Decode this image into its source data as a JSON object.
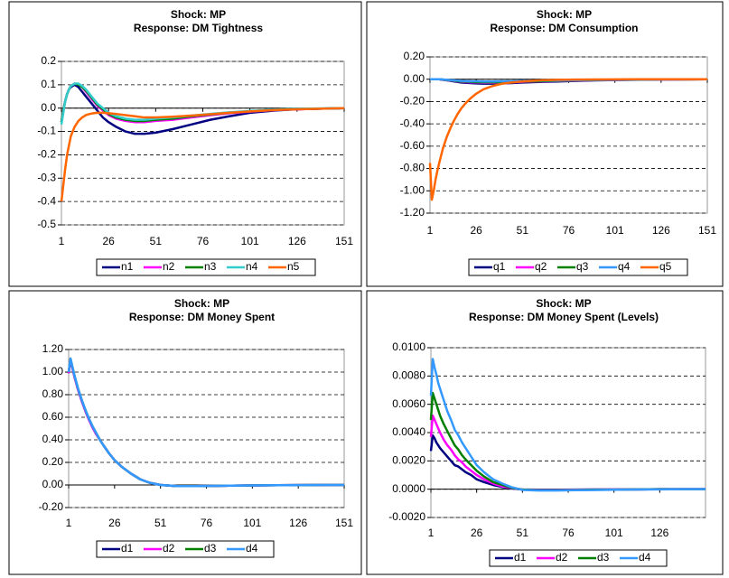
{
  "chart_data": [
    {
      "type": "line",
      "title": "Shock: MP",
      "subtitle": "Response: DM Tightness",
      "x": [
        1,
        2,
        3,
        4,
        5,
        6,
        8,
        10,
        12,
        14,
        16,
        18,
        20,
        23,
        26,
        30,
        35,
        40,
        45,
        51,
        60,
        70,
        80,
        90,
        101,
        115,
        126,
        140,
        151
      ],
      "xlim": [
        1,
        151
      ],
      "xticks": [
        1,
        26,
        51,
        76,
        101,
        126,
        151
      ],
      "ylim": [
        -0.5,
        0.2
      ],
      "yticks": [
        0.2,
        0.1,
        {
          "value": 0,
          "label": "0.0"
        },
        -0.1,
        -0.2,
        -0.3,
        -0.4,
        -0.5
      ],
      "grid": true,
      "legend": "bottom",
      "series": [
        {
          "name": "n1",
          "color": "#000080",
          "values": [
            -0.06,
            -0.01,
            0.03,
            0.06,
            0.08,
            0.09,
            0.1,
            0.09,
            0.07,
            0.05,
            0.03,
            0.01,
            -0.01,
            -0.04,
            -0.06,
            -0.08,
            -0.1,
            -0.11,
            -0.11,
            -0.105,
            -0.09,
            -0.07,
            -0.05,
            -0.035,
            -0.02,
            -0.01,
            -0.005,
            -0.002,
            0
          ]
        },
        {
          "name": "n2",
          "color": "#ff00ff",
          "values": [
            -0.06,
            -0.01,
            0.03,
            0.06,
            0.08,
            0.095,
            0.105,
            0.1,
            0.09,
            0.07,
            0.05,
            0.03,
            0.01,
            -0.01,
            -0.03,
            -0.045,
            -0.055,
            -0.06,
            -0.06,
            -0.055,
            -0.05,
            -0.04,
            -0.03,
            -0.022,
            -0.015,
            -0.008,
            -0.005,
            -0.002,
            0
          ]
        },
        {
          "name": "n3",
          "color": "#008000",
          "values": [
            -0.06,
            -0.01,
            0.03,
            0.06,
            0.08,
            0.095,
            0.105,
            0.1,
            0.09,
            0.075,
            0.055,
            0.035,
            0.015,
            -0.005,
            -0.025,
            -0.04,
            -0.05,
            -0.055,
            -0.055,
            -0.05,
            -0.045,
            -0.035,
            -0.027,
            -0.02,
            -0.013,
            -0.007,
            -0.004,
            -0.002,
            0
          ]
        },
        {
          "name": "n4",
          "color": "#33cccc",
          "values": [
            -0.07,
            -0.02,
            0.03,
            0.06,
            0.08,
            0.095,
            0.105,
            0.105,
            0.095,
            0.08,
            0.06,
            0.04,
            0.02,
            0,
            -0.02,
            -0.035,
            -0.045,
            -0.05,
            -0.05,
            -0.045,
            -0.04,
            -0.032,
            -0.025,
            -0.018,
            -0.012,
            -0.006,
            -0.003,
            -0.001,
            0
          ]
        },
        {
          "name": "n5",
          "color": "#ff6600",
          "values": [
            -0.4,
            -0.33,
            -0.26,
            -0.2,
            -0.16,
            -0.12,
            -0.08,
            -0.055,
            -0.04,
            -0.03,
            -0.025,
            -0.022,
            -0.02,
            -0.02,
            -0.022,
            -0.025,
            -0.03,
            -0.035,
            -0.04,
            -0.04,
            -0.037,
            -0.032,
            -0.026,
            -0.02,
            -0.014,
            -0.008,
            -0.005,
            -0.002,
            0
          ]
        }
      ]
    },
    {
      "type": "line",
      "title": "Shock: MP",
      "subtitle": "Response: DM Consumption",
      "x": [
        1,
        2,
        3,
        4,
        5,
        6,
        8,
        10,
        12,
        14,
        16,
        18,
        20,
        23,
        26,
        30,
        35,
        40,
        45,
        51,
        60,
        70,
        80,
        90,
        101,
        115,
        126,
        140,
        151
      ],
      "xlim": [
        1,
        151
      ],
      "xticks": [
        1,
        26,
        51,
        76,
        101,
        126,
        151
      ],
      "ylim": [
        -1.2,
        0.2
      ],
      "yticks": [
        {
          "value": 0.2,
          "label": "0.20"
        },
        {
          "value": 0,
          "label": "0.00"
        },
        {
          "value": -0.2,
          "label": "-0.20"
        },
        {
          "value": -0.4,
          "label": "-0.40"
        },
        {
          "value": -0.6,
          "label": "-0.60"
        },
        {
          "value": -0.8,
          "label": "-0.80"
        },
        {
          "value": -1,
          "label": "-1.00"
        },
        {
          "value": -1.2,
          "label": "-1.20"
        }
      ],
      "grid": true,
      "legend": "bottom",
      "series": [
        {
          "name": "q1",
          "color": "#000080",
          "values": [
            0,
            0,
            0,
            0,
            0,
            0,
            -0.005,
            -0.01,
            -0.015,
            -0.02,
            -0.025,
            -0.03,
            -0.032,
            -0.035,
            -0.038,
            -0.04,
            -0.04,
            -0.038,
            -0.035,
            -0.03,
            -0.025,
            -0.02,
            -0.015,
            -0.01,
            -0.007,
            -0.004,
            -0.002,
            -0.001,
            0
          ]
        },
        {
          "name": "q2",
          "color": "#ff00ff",
          "values": [
            0,
            0,
            0,
            0,
            0,
            0,
            -0.004,
            -0.008,
            -0.012,
            -0.016,
            -0.02,
            -0.024,
            -0.026,
            -0.028,
            -0.03,
            -0.032,
            -0.032,
            -0.03,
            -0.028,
            -0.024,
            -0.02,
            -0.016,
            -0.012,
            -0.008,
            -0.006,
            -0.003,
            -0.002,
            -0.001,
            0
          ]
        },
        {
          "name": "q3",
          "color": "#008000",
          "values": [
            0,
            0,
            0,
            0,
            0,
            0,
            -0.003,
            -0.007,
            -0.01,
            -0.014,
            -0.018,
            -0.021,
            -0.022,
            -0.024,
            -0.027,
            -0.028,
            -0.028,
            -0.027,
            -0.025,
            -0.021,
            -0.018,
            -0.014,
            -0.01,
            -0.007,
            -0.005,
            -0.003,
            -0.001,
            -0.001,
            0
          ]
        },
        {
          "name": "q4",
          "color": "#3399ff",
          "values": [
            0,
            0,
            0,
            0,
            0,
            0,
            -0.002,
            -0.005,
            -0.008,
            -0.01,
            -0.012,
            -0.015,
            -0.016,
            -0.018,
            -0.019,
            -0.02,
            -0.02,
            -0.019,
            -0.018,
            -0.015,
            -0.012,
            -0.01,
            -0.008,
            -0.005,
            -0.004,
            -0.002,
            -0.001,
            0,
            0
          ]
        },
        {
          "name": "q5",
          "color": "#ff6600",
          "values": [
            -0.75,
            -1.08,
            -1,
            -0.9,
            -0.82,
            -0.75,
            -0.62,
            -0.52,
            -0.44,
            -0.37,
            -0.31,
            -0.26,
            -0.22,
            -0.17,
            -0.13,
            -0.09,
            -0.06,
            -0.04,
            -0.03,
            -0.02,
            -0.01,
            -0.005,
            -0.003,
            -0.002,
            -0.001,
            0,
            0,
            0,
            0
          ]
        }
      ]
    },
    {
      "type": "line",
      "title": "Shock: MP",
      "subtitle": "Response: DM Money Spent",
      "x": [
        1,
        2,
        3,
        4,
        5,
        6,
        8,
        10,
        12,
        14,
        16,
        18,
        20,
        23,
        26,
        30,
        35,
        40,
        45,
        51,
        60,
        70,
        80,
        90,
        101,
        115,
        126,
        140,
        151
      ],
      "xlim": [
        1,
        151
      ],
      "xticks": [
        1,
        26,
        51,
        76,
        101,
        126,
        151
      ],
      "ylim": [
        -0.2,
        1.2
      ],
      "yticks": [
        {
          "value": 1.2,
          "label": "1.20"
        },
        {
          "value": 1,
          "label": "1.00"
        },
        {
          "value": 0.8,
          "label": "0.80"
        },
        {
          "value": 0.6,
          "label": "0.60"
        },
        {
          "value": 0.4,
          "label": "0.40"
        },
        {
          "value": 0.2,
          "label": "0.20"
        },
        {
          "value": 0,
          "label": "0.00"
        },
        {
          "value": -0.2,
          "label": "-0.20"
        }
      ],
      "grid": true,
      "legend": "bottom",
      "series": [
        {
          "name": "d1",
          "color": "#000080",
          "values": [
            0.99,
            1.11,
            1.04,
            0.97,
            0.91,
            0.85,
            0.75,
            0.66,
            0.58,
            0.51,
            0.45,
            0.4,
            0.35,
            0.28,
            0.22,
            0.16,
            0.1,
            0.05,
            0.02,
            0,
            -0.01,
            -0.01,
            -0.008,
            -0.006,
            -0.004,
            -0.002,
            -0.001,
            0,
            0
          ]
        },
        {
          "name": "d2",
          "color": "#ff00ff",
          "values": [
            0.99,
            1.11,
            1.04,
            0.97,
            0.91,
            0.85,
            0.75,
            0.66,
            0.58,
            0.51,
            0.45,
            0.4,
            0.35,
            0.28,
            0.22,
            0.16,
            0.1,
            0.05,
            0.02,
            0,
            -0.01,
            -0.01,
            -0.008,
            -0.006,
            -0.004,
            -0.002,
            -0.001,
            0,
            0
          ]
        },
        {
          "name": "d3",
          "color": "#008000",
          "values": [
            1,
            1.12,
            1.05,
            0.98,
            0.92,
            0.86,
            0.76,
            0.67,
            0.59,
            0.52,
            0.46,
            0.4,
            0.35,
            0.28,
            0.22,
            0.16,
            0.1,
            0.05,
            0.02,
            0,
            -0.01,
            -0.01,
            -0.008,
            -0.006,
            -0.004,
            -0.002,
            -0.001,
            0,
            0
          ]
        },
        {
          "name": "d4",
          "color": "#3399ff",
          "values": [
            1,
            1.12,
            1.05,
            0.98,
            0.92,
            0.86,
            0.76,
            0.67,
            0.59,
            0.52,
            0.46,
            0.4,
            0.35,
            0.28,
            0.22,
            0.16,
            0.1,
            0.05,
            0.02,
            0,
            -0.01,
            -0.01,
            -0.008,
            -0.006,
            -0.004,
            -0.002,
            -0.001,
            0,
            0
          ]
        }
      ]
    },
    {
      "type": "line",
      "title": "Shock: MP",
      "subtitle": "Response: DM Money Spent  (Levels)",
      "x": [
        1,
        2,
        3,
        4,
        5,
        6,
        8,
        10,
        12,
        14,
        16,
        18,
        20,
        23,
        26,
        30,
        35,
        40,
        45,
        51,
        60,
        70,
        80,
        90,
        101,
        115,
        126,
        140,
        151
      ],
      "xlim": [
        1,
        151
      ],
      "xticks": [
        1,
        26,
        51,
        76,
        101,
        126
      ],
      "ylim": [
        -0.002,
        0.01
      ],
      "yticks": [
        {
          "value": 0.01,
          "label": "0.0100"
        },
        {
          "value": 0.008,
          "label": "0.0080"
        },
        {
          "value": 0.006,
          "label": "0.0060"
        },
        {
          "value": 0.004,
          "label": "0.0040"
        },
        {
          "value": 0.002,
          "label": "0.0020"
        },
        {
          "value": 0,
          "label": "0.0000"
        },
        {
          "value": -0.002,
          "label": "-0.0020"
        }
      ],
      "grid": true,
      "legend": "bottom",
      "series": [
        {
          "name": "d1",
          "color": "#000080",
          "values": [
            0.0027,
            0.0038,
            0.0036,
            0.0033,
            0.0031,
            0.0029,
            0.0026,
            0.0023,
            0.002,
            0.0017,
            0.0016,
            0.0014,
            0.0012,
            0.001,
            0.0007,
            0.0005,
            0.0003,
            0.00015,
            6e-05,
            -2e-05,
            -4e-05,
            -4e-05,
            -3e-05,
            -2e-05,
            -2e-05,
            -1e-05,
            0,
            0,
            0
          ]
        },
        {
          "name": "d2",
          "color": "#ff00ff",
          "values": [
            0.0037,
            0.0052,
            0.0049,
            0.0046,
            0.0043,
            0.004,
            0.0035,
            0.0031,
            0.0028,
            0.0024,
            0.0021,
            0.0019,
            0.0016,
            0.0013,
            0.001,
            0.0007,
            0.0004,
            0.0002,
            8e-05,
            -3e-05,
            -5e-05,
            -5e-05,
            -4e-05,
            -3e-05,
            -2e-05,
            -1e-05,
            0,
            0,
            0
          ]
        },
        {
          "name": "d3",
          "color": "#008000",
          "values": [
            0.0049,
            0.0068,
            0.0064,
            0.006,
            0.0056,
            0.0052,
            0.0046,
            0.0041,
            0.0036,
            0.0031,
            0.0028,
            0.0024,
            0.0021,
            0.0017,
            0.0013,
            0.0009,
            0.0005,
            0.0003,
            0.0001,
            -3e-05,
            -7e-05,
            -7e-05,
            -5e-05,
            -4e-05,
            -3e-05,
            -1e-05,
            0,
            0,
            0
          ]
        },
        {
          "name": "d4",
          "color": "#3399ff",
          "values": [
            0.0066,
            0.0092,
            0.0086,
            0.0081,
            0.0075,
            0.0071,
            0.0063,
            0.0055,
            0.0049,
            0.0042,
            0.0038,
            0.0033,
            0.0029,
            0.0023,
            0.0017,
            0.0012,
            0.0007,
            0.0004,
            0.00014,
            -5e-05,
            -9e-05,
            -9e-05,
            -7e-05,
            -6e-05,
            -4e-05,
            -2e-05,
            -1e-05,
            0,
            0
          ]
        }
      ]
    }
  ]
}
